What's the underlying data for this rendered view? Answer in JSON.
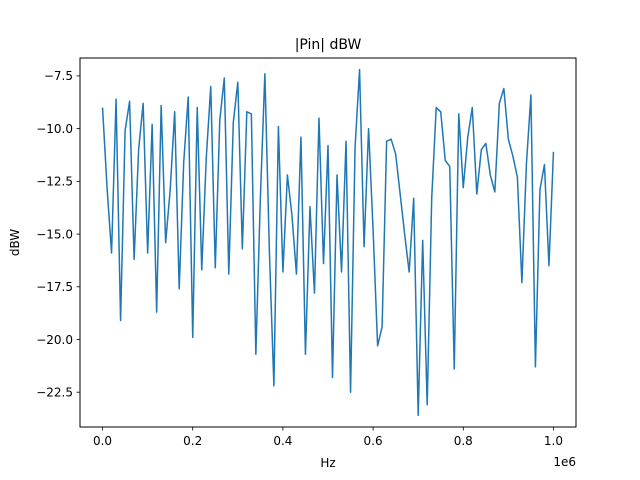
{
  "chart_data": {
    "type": "line",
    "title": "|Pin| dBW",
    "xlabel": "Hz",
    "ylabel": "dBW",
    "x_offset_text": "1e6",
    "xlim": [
      -0.05,
      1.05
    ],
    "ylim": [
      -24.15,
      -6.65
    ],
    "xticks": [
      0.0,
      0.2,
      0.4,
      0.6,
      0.8,
      1.0
    ],
    "xtick_labels": [
      "0.0",
      "0.2",
      "0.4",
      "0.6",
      "0.8",
      "1.0"
    ],
    "yticks": [
      -22.5,
      -20.0,
      -17.5,
      -15.0,
      -12.5,
      -10.0,
      -7.5
    ],
    "ytick_labels": [
      "−22.5",
      "−20.0",
      "−17.5",
      "−15.0",
      "−12.5",
      "−10.0",
      "−7.5"
    ],
    "grid": false,
    "colors": {
      "line": "#1f77b4",
      "axes": "#000000",
      "background": "#ffffff"
    },
    "series": [
      {
        "x": [
          0.0,
          0.01,
          0.02,
          0.03,
          0.04,
          0.05,
          0.06,
          0.07,
          0.08,
          0.09,
          0.1,
          0.11,
          0.12,
          0.13,
          0.14,
          0.15,
          0.16,
          0.17,
          0.18,
          0.19,
          0.2,
          0.21,
          0.22,
          0.23,
          0.24,
          0.25,
          0.26,
          0.27,
          0.28,
          0.29,
          0.3,
          0.31,
          0.32,
          0.33,
          0.34,
          0.35,
          0.36,
          0.37,
          0.38,
          0.39,
          0.4,
          0.41,
          0.42,
          0.43,
          0.44,
          0.45,
          0.46,
          0.47,
          0.48,
          0.49,
          0.5,
          0.51,
          0.52,
          0.53,
          0.54,
          0.55,
          0.56,
          0.57,
          0.58,
          0.59,
          0.6,
          0.61,
          0.62,
          0.63,
          0.64,
          0.65,
          0.66,
          0.67,
          0.68,
          0.69,
          0.7,
          0.71,
          0.72,
          0.73,
          0.74,
          0.75,
          0.76,
          0.77,
          0.78,
          0.79,
          0.8,
          0.81,
          0.82,
          0.83,
          0.84,
          0.85,
          0.86,
          0.87,
          0.88,
          0.89,
          0.9,
          0.91,
          0.92,
          0.93,
          0.94,
          0.95,
          0.96,
          0.97,
          0.98,
          0.99,
          1.0
        ],
        "y": [
          -9.0,
          -12.8,
          -15.9,
          -8.6,
          -19.1,
          -10.1,
          -8.7,
          -16.2,
          -11.0,
          -8.8,
          -15.9,
          -9.8,
          -18.7,
          -8.9,
          -15.4,
          -12.9,
          -9.2,
          -17.6,
          -11.6,
          -8.5,
          -19.9,
          -9.0,
          -16.7,
          -11.4,
          -8.0,
          -16.6,
          -9.6,
          -7.6,
          -16.9,
          -9.7,
          -7.8,
          -15.7,
          -9.2,
          -9.3,
          -20.7,
          -13.3,
          -7.4,
          -15.8,
          -22.2,
          -9.9,
          -16.8,
          -12.2,
          -14.1,
          -16.9,
          -10.4,
          -20.7,
          -13.7,
          -17.8,
          -9.5,
          -16.4,
          -10.8,
          -21.8,
          -12.2,
          -16.8,
          -10.6,
          -22.5,
          -10.9,
          -7.2,
          -15.6,
          -10.0,
          -14.8,
          -20.3,
          -19.4,
          -10.6,
          -10.5,
          -11.2,
          -13.1,
          -15.0,
          -16.8,
          -13.3,
          -23.6,
          -15.3,
          -23.1,
          -13.3,
          -9.0,
          -9.2,
          -11.5,
          -11.8,
          -21.4,
          -9.3,
          -12.8,
          -10.4,
          -9.0,
          -13.1,
          -11.0,
          -10.7,
          -12.2,
          -13.0,
          -8.8,
          -8.1,
          -10.5,
          -11.3,
          -12.3,
          -17.3,
          -11.7,
          -8.4,
          -21.3,
          -12.9,
          -11.7,
          -16.5,
          -11.1
        ]
      }
    ]
  }
}
